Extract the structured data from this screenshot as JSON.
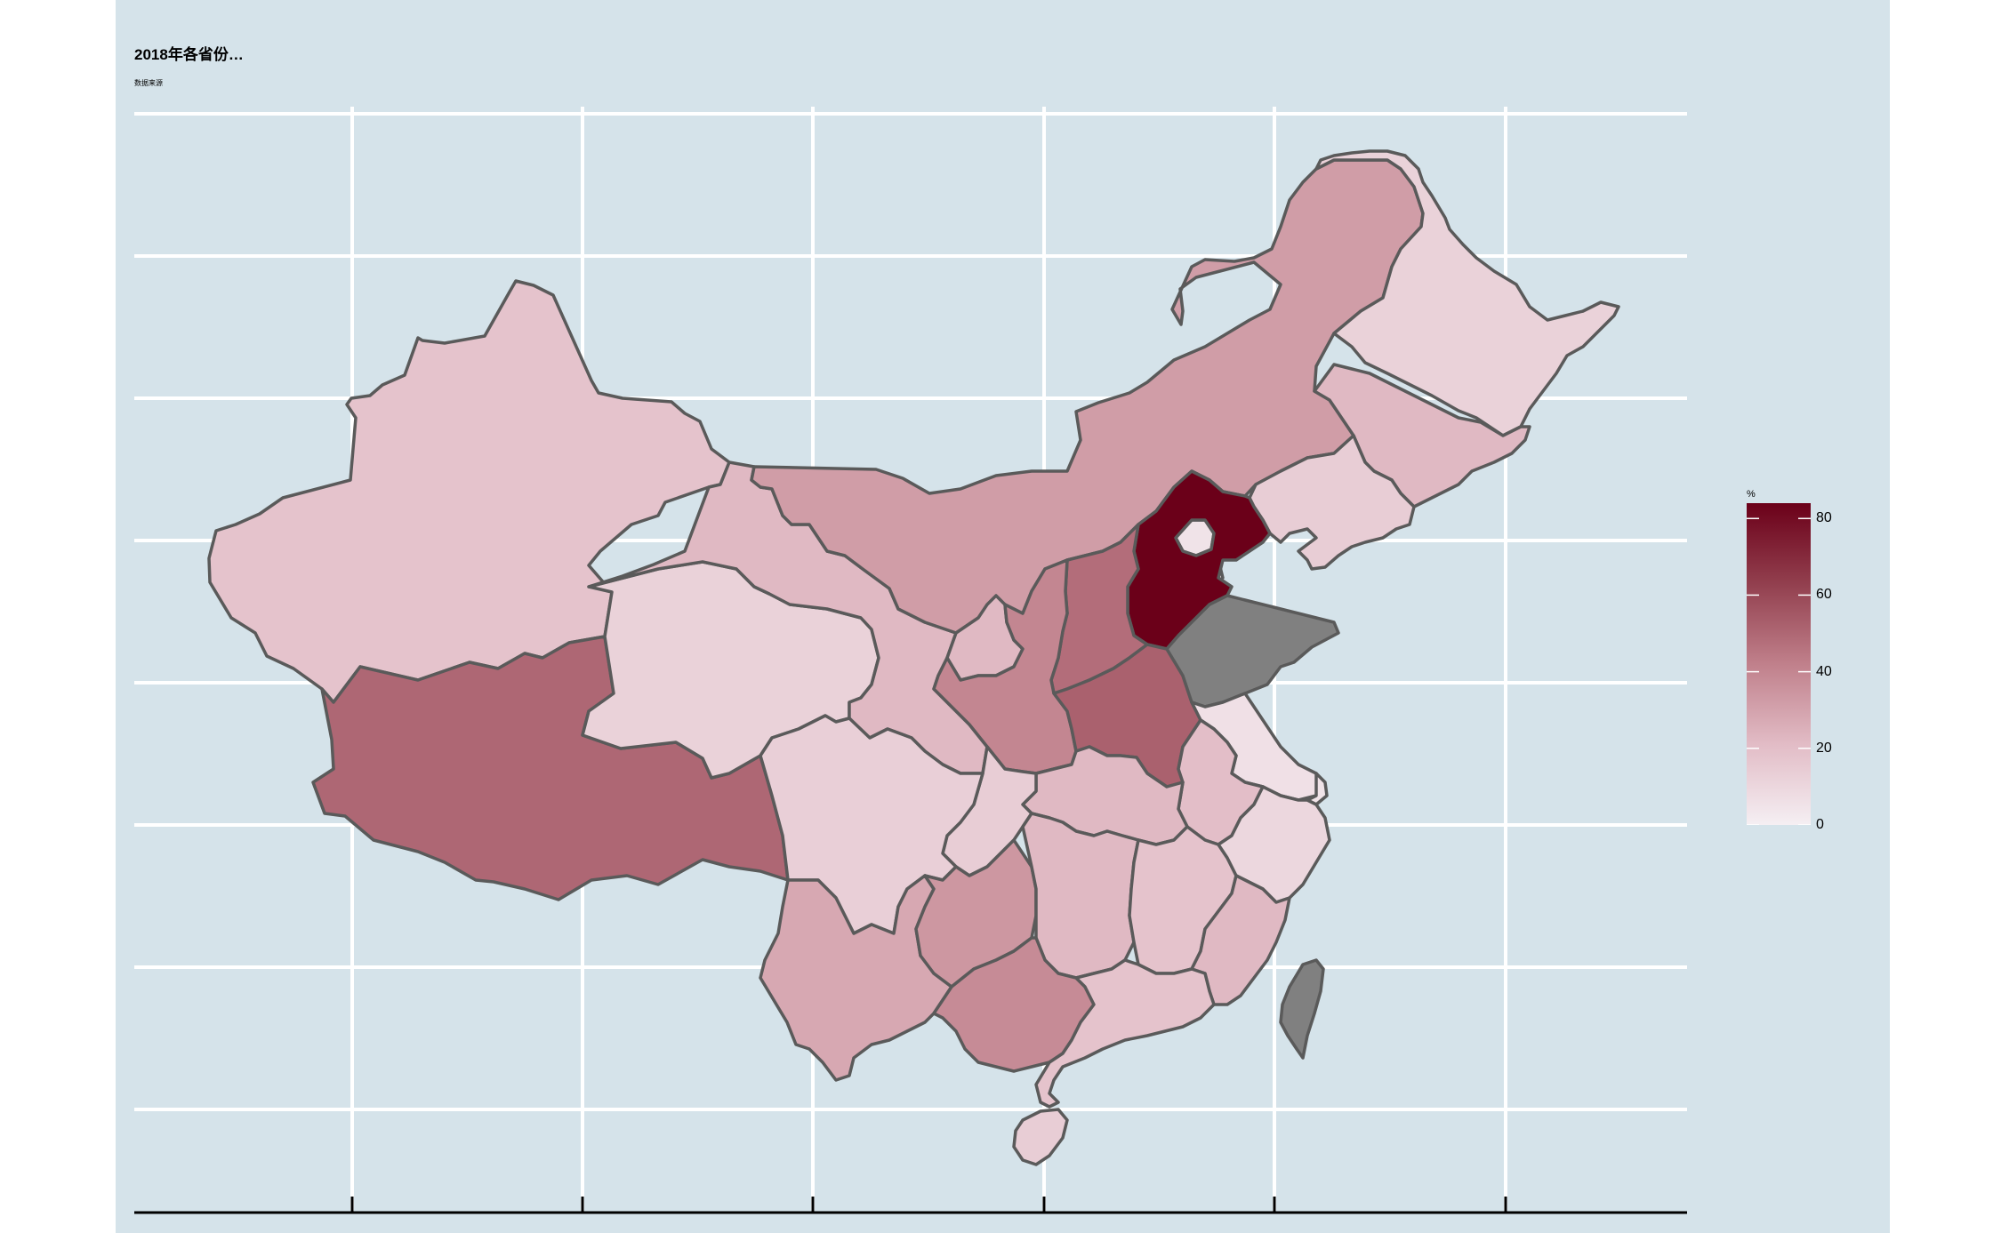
{
  "map": {
    "title": "2018年各省份…",
    "subtitle": "数据来源",
    "legend": {
      "title": "%",
      "ticks": [
        "80",
        "60",
        "40",
        "20",
        "0"
      ],
      "range": [
        0,
        84
      ],
      "color_low": "#f5eff3",
      "color_high": "#6b0019"
    },
    "colors": {
      "background": "#d5e3ea",
      "gridline": "#ffffff",
      "border": "#5a5a5a",
      "missing": "#808080"
    },
    "regions": [
      {
        "name": "xinjiang-region",
        "value": 18
      },
      {
        "name": "tibet-region",
        "value": 50
      },
      {
        "name": "qinghai-region",
        "value": 12
      },
      {
        "name": "gansu-region",
        "value": 22
      },
      {
        "name": "inner-mongolia-region",
        "value": 32
      },
      {
        "name": "heilongjiang-region",
        "value": 12
      },
      {
        "name": "jilin-region",
        "value": 22
      },
      {
        "name": "liaoning-region",
        "value": 14
      },
      {
        "name": "hebei-region",
        "value": 84
      },
      {
        "name": "beijing-region",
        "value": 5
      },
      {
        "name": "tianjin-region",
        "value": 5
      },
      {
        "name": "shanxi-region",
        "value": 48
      },
      {
        "name": "shaanxi-region",
        "value": 40
      },
      {
        "name": "ningxia-region",
        "value": 22
      },
      {
        "name": "henan-region",
        "value": 52
      },
      {
        "name": "shandong-region",
        "value": null
      },
      {
        "name": "jiangsu-region",
        "value": 6
      },
      {
        "name": "anhui-region",
        "value": 20
      },
      {
        "name": "hubei-region",
        "value": 22
      },
      {
        "name": "sichuan-region",
        "value": 13
      },
      {
        "name": "chongqing-region",
        "value": 14
      },
      {
        "name": "yunnan-region",
        "value": 28
      },
      {
        "name": "guizhou-region",
        "value": 34
      },
      {
        "name": "hunan-region",
        "value": 22
      },
      {
        "name": "jiangxi-region",
        "value": 18
      },
      {
        "name": "zhejiang-region",
        "value": 10
      },
      {
        "name": "fujian-region",
        "value": 22
      },
      {
        "name": "guangxi-region",
        "value": 38
      },
      {
        "name": "guangdong-region",
        "value": 18
      },
      {
        "name": "hainan-region",
        "value": 14
      },
      {
        "name": "shanghai-region",
        "value": 5
      },
      {
        "name": "taiwan-region",
        "value": null
      }
    ]
  }
}
